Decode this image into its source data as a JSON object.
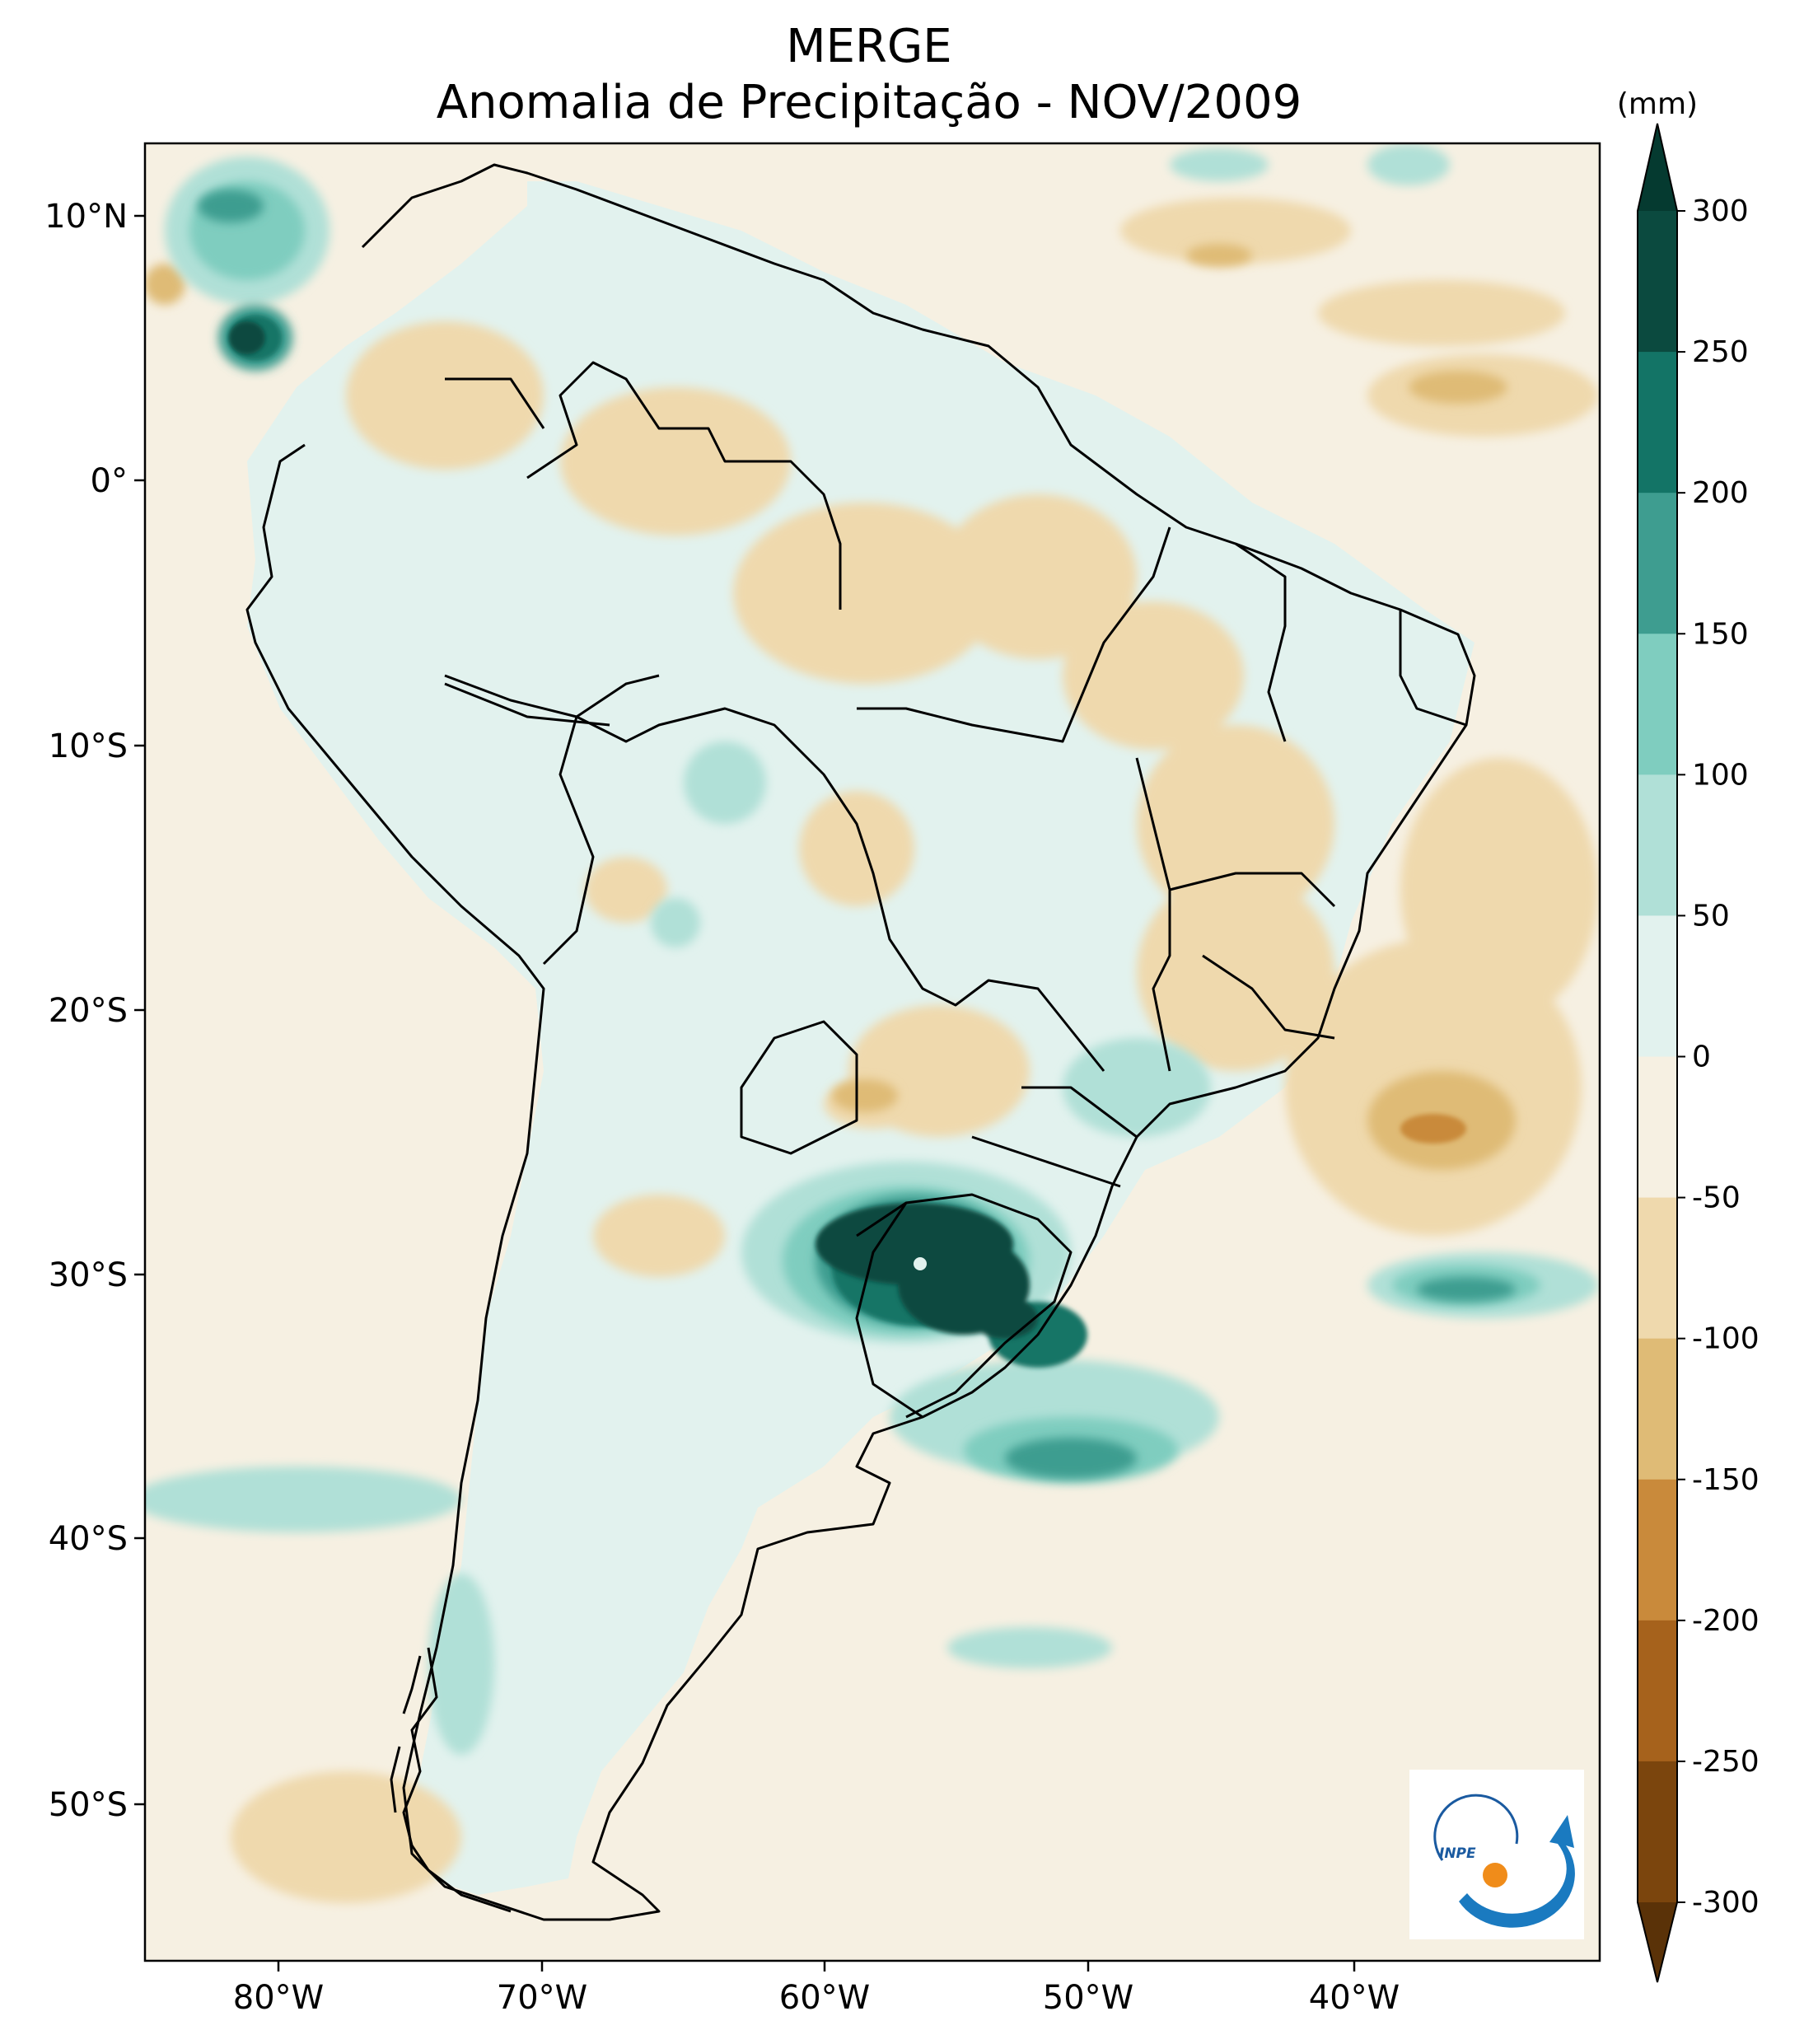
{
  "title": {
    "line1": "MERGE",
    "line2": "Anomalia de Precipitação - NOV/2009"
  },
  "map": {
    "region": "South America",
    "lon_ticks": [
      "80°W",
      "70°W",
      "60°W",
      "50°W",
      "40°W"
    ],
    "lat_ticks": [
      "10°N",
      "0°",
      "10°S",
      "20°S",
      "30°S",
      "40°S",
      "50°S"
    ]
  },
  "colorbar": {
    "unit": "(mm)",
    "levels": [
      "300",
      "250",
      "200",
      "150",
      "100",
      "50",
      "0",
      "-50",
      "-100",
      "-150",
      "-200",
      "-250",
      "-300"
    ],
    "colors_top_to_bottom": [
      "#0b4a3f",
      "#137466",
      "#3e9d90",
      "#7fcdbf",
      "#b0e0d7",
      "#e2f2ee",
      "#f6f0e2",
      "#efd9ad",
      "#dfbb76",
      "#c98a3b",
      "#a6621c",
      "#7b450d"
    ],
    "arrow_top_color": "#053a30",
    "arrow_bottom_color": "#5a3208"
  },
  "logo": {
    "text": "INPE"
  }
}
